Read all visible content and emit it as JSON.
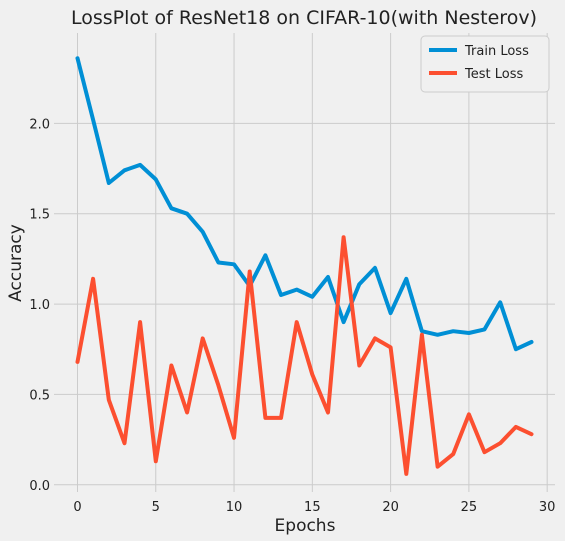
{
  "chart_data": {
    "type": "line",
    "title": "LossPlot of ResNet18 on CIFAR-10(with Nesterov)",
    "xlabel": "Epochs",
    "ylabel": "Accuracy",
    "xlim": [
      -1.5,
      30.5
    ],
    "ylim": [
      -0.04,
      2.5
    ],
    "xticks": [
      0,
      5,
      10,
      15,
      20,
      25,
      30
    ],
    "yticks": [
      0.0,
      0.5,
      1.0,
      1.5,
      2.0
    ],
    "ytick_labels": [
      "0.0",
      "0.5",
      "1.0",
      "1.5",
      "2.0"
    ],
    "grid": true,
    "legend_position": "top-right",
    "x": [
      0,
      1,
      2,
      3,
      4,
      5,
      6,
      7,
      8,
      9,
      10,
      11,
      12,
      13,
      14,
      15,
      16,
      17,
      18,
      19,
      20,
      21,
      22,
      23,
      24,
      25,
      26,
      27,
      28,
      29
    ],
    "series": [
      {
        "name": "Train Loss",
        "color": "#008fd5",
        "values": [
          2.36,
          2.02,
          1.67,
          1.74,
          1.77,
          1.69,
          1.53,
          1.5,
          1.4,
          1.23,
          1.22,
          1.1,
          1.27,
          1.05,
          1.08,
          1.04,
          1.15,
          0.9,
          1.11,
          1.2,
          0.95,
          1.14,
          0.85,
          0.83,
          0.85,
          0.84,
          0.86,
          1.01,
          0.75,
          0.79
        ]
      },
      {
        "name": "Test Loss",
        "color": "#fc4f30",
        "values": [
          0.68,
          1.14,
          0.47,
          0.23,
          0.9,
          0.13,
          0.66,
          0.4,
          0.81,
          0.55,
          0.26,
          1.18,
          0.37,
          0.37,
          0.9,
          0.61,
          0.4,
          1.37,
          0.66,
          0.81,
          0.76,
          0.06,
          0.83,
          0.1,
          0.17,
          0.39,
          0.18,
          0.23,
          0.32,
          0.28
        ]
      }
    ]
  }
}
